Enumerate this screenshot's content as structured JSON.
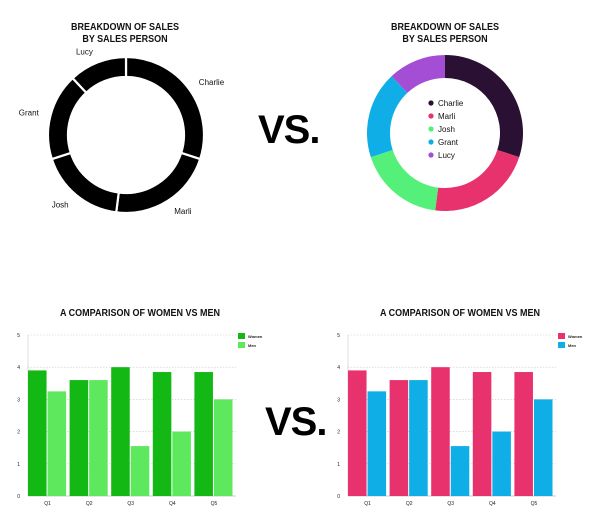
{
  "vs_label": "VS.",
  "chart_data": [
    {
      "type": "pie",
      "variant": "donut",
      "title": "BREAKDOWN OF SALES\nBY SALES PERSON",
      "labels": [
        "Charlie",
        "Marli",
        "Josh",
        "Grant",
        "Lucy"
      ],
      "values": [
        30,
        22,
        18,
        18,
        12
      ],
      "colors": [
        "#000000",
        "#000000",
        "#000000",
        "#000000",
        "#000000"
      ],
      "legend": "none",
      "labels_outside": true
    },
    {
      "type": "pie",
      "variant": "donut",
      "title": "BREAKDOWN OF SALES\nBY SALES PERSON",
      "labels": [
        "Charlie",
        "Marli",
        "Josh",
        "Grant",
        "Lucy"
      ],
      "values": [
        30,
        22,
        18,
        18,
        12
      ],
      "colors": [
        "#2a1033",
        "#e8326e",
        "#55f07a",
        "#10aee6",
        "#a44ed6"
      ],
      "legend": "center"
    },
    {
      "type": "bar",
      "title": "A COMPARISON OF WOMEN VS MEN",
      "categories": [
        "Q1",
        "Q2",
        "Q3",
        "Q4",
        "Q5"
      ],
      "series": [
        {
          "name": "Women",
          "values": [
            3.9,
            3.6,
            4.0,
            3.85,
            3.85
          ],
          "color": "#14b814"
        },
        {
          "name": "Men",
          "values": [
            3.25,
            3.6,
            1.55,
            2.0,
            3.0
          ],
          "color": "#5ee85e"
        }
      ],
      "ylim": [
        0,
        5
      ],
      "yticks": [
        "0",
        "1",
        "2",
        "3",
        "4",
        "5"
      ],
      "legend": "top-right",
      "grid": true
    },
    {
      "type": "bar",
      "title": "A COMPARISON OF WOMEN VS MEN",
      "categories": [
        "Q1",
        "Q2",
        "Q3",
        "Q4",
        "Q5"
      ],
      "series": [
        {
          "name": "Women",
          "values": [
            3.9,
            3.6,
            4.0,
            3.85,
            3.85
          ],
          "color": "#e8326e"
        },
        {
          "name": "Men",
          "values": [
            3.25,
            3.6,
            1.55,
            2.0,
            3.0
          ],
          "color": "#10aee6"
        }
      ],
      "ylim": [
        0,
        5
      ],
      "yticks": [
        "0",
        "1",
        "2",
        "3",
        "4",
        "5"
      ],
      "legend": "top-right",
      "grid": true
    }
  ]
}
